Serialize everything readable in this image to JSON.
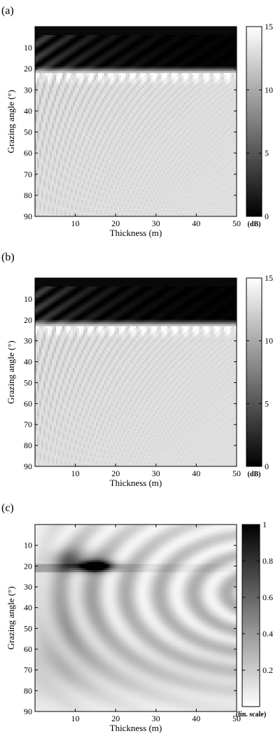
{
  "chart_data": [
    {
      "type": "heatmap",
      "panel_label": "(a)",
      "title": "",
      "xlabel": "Thickness (m)",
      "ylabel": "Grazing angle (°)",
      "xlim": [
        0,
        50
      ],
      "ylim": [
        0,
        90
      ],
      "y_reversed": true,
      "x_ticks": [
        10,
        20,
        30,
        40,
        50
      ],
      "y_ticks": [
        10,
        20,
        30,
        40,
        50,
        60,
        70,
        80,
        90
      ],
      "colorbar": {
        "range": [
          0,
          15
        ],
        "ticks": [
          0,
          5,
          10,
          15
        ],
        "unit": "(dB)",
        "colormap": "gray",
        "low_color": "#000000",
        "high_color": "#ffffff"
      },
      "features": {
        "dark_band_angle_range": [
          2,
          22
        ],
        "value_in_dark_band_db": 0,
        "value_outside_db": 13,
        "interference_fringes": true
      }
    },
    {
      "type": "heatmap",
      "panel_label": "(b)",
      "title": "",
      "xlabel": "Thickness (m)",
      "ylabel": "Grazing angle (°)",
      "xlim": [
        0,
        50
      ],
      "ylim": [
        0,
        90
      ],
      "y_reversed": true,
      "x_ticks": [
        10,
        20,
        30,
        40,
        50
      ],
      "y_ticks": [
        10,
        20,
        30,
        40,
        50,
        60,
        70,
        80,
        90
      ],
      "colorbar": {
        "range": [
          0,
          15
        ],
        "ticks": [
          0,
          5,
          10,
          15
        ],
        "unit": "(dB)",
        "colormap": "gray",
        "low_color": "#000000",
        "high_color": "#ffffff"
      },
      "features": {
        "dark_band_angle_range": [
          2,
          23
        ],
        "value_in_dark_band_db": 0,
        "value_outside_db": 13,
        "interference_fringes": true
      }
    },
    {
      "type": "heatmap",
      "panel_label": "(c)",
      "title": "",
      "xlabel": "Thickness (m)",
      "ylabel": "Grazing angle (°)",
      "xlim": [
        0,
        50
      ],
      "ylim": [
        0,
        90
      ],
      "y_reversed": true,
      "x_ticks": [
        10,
        20,
        30,
        40,
        50
      ],
      "y_ticks": [
        10,
        20,
        30,
        40,
        50,
        60,
        70,
        80,
        90
      ],
      "colorbar": {
        "range": [
          0,
          1
        ],
        "ticks": [
          0.2,
          0.4,
          0.6,
          0.8,
          1
        ],
        "unit": "(lin. scale)",
        "colormap": "gray_r",
        "low_color": "#ffffff",
        "high_color": "#000000"
      },
      "features": {
        "peak_location": {
          "thickness": 15,
          "angle": 20
        },
        "peak_value": 1,
        "ring_center": {
          "thickness": 55,
          "angle": 35
        },
        "concentric_rings": 5
      }
    }
  ]
}
